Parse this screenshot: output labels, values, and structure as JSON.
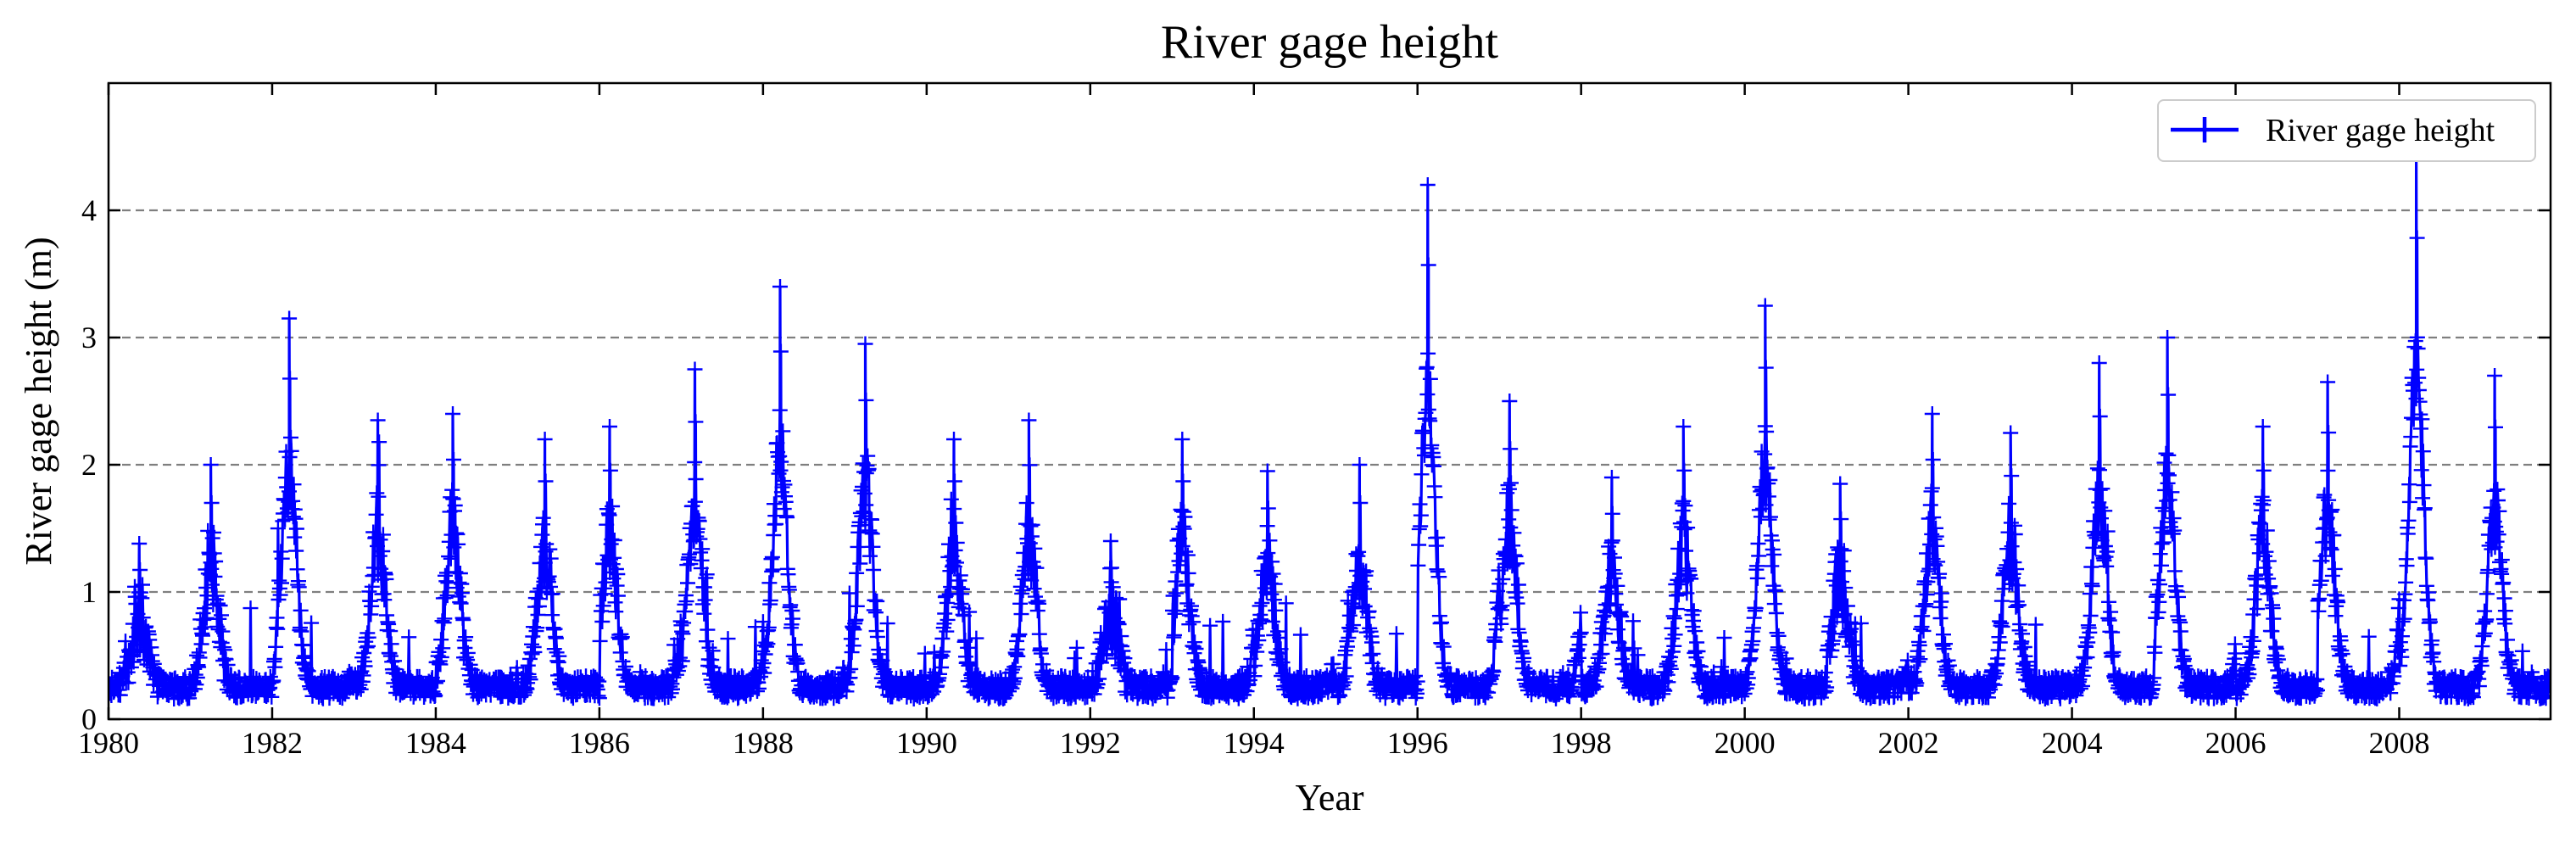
{
  "chart_data": {
    "type": "line",
    "title": "River gage height",
    "xlabel": "Year",
    "ylabel": "River gage height (m)",
    "xlim": [
      1980,
      2009.85
    ],
    "ylim": [
      0,
      5.0
    ],
    "x_ticks": [
      "1980",
      "1982",
      "1984",
      "1986",
      "1988",
      "1990",
      "1992",
      "1994",
      "1996",
      "1998",
      "2000",
      "2002",
      "2004",
      "2006",
      "2008"
    ],
    "y_ticks": [
      "0",
      "1",
      "2",
      "3",
      "4"
    ],
    "grid": "horizontal dashed",
    "legend": {
      "position": "top-right",
      "entries": [
        "River gage height"
      ]
    },
    "series": [
      {
        "name": "River gage height",
        "color": "#0000ff",
        "marker": "+",
        "annual_peaks": [
          {
            "year": 1980,
            "peak": 1.38,
            "month": 4.5
          },
          {
            "year": 1981,
            "peak": 2.0,
            "month": 3.0
          },
          {
            "year": 1982,
            "peak": 3.15,
            "month": 2.5
          },
          {
            "year": 1983,
            "peak": 2.35,
            "month": 3.5
          },
          {
            "year": 1984,
            "peak": 2.4,
            "month": 2.5
          },
          {
            "year": 1985,
            "peak": 2.2,
            "month": 4.0
          },
          {
            "year": 1986,
            "peak": 2.3,
            "month": 1.5
          },
          {
            "year": 1987,
            "peak": 2.75,
            "month": 2.0
          },
          {
            "year": 1988,
            "peak": 3.4,
            "month": 2.5
          },
          {
            "year": 1989,
            "peak": 2.95,
            "month": 3.0
          },
          {
            "year": 1990,
            "peak": 2.2,
            "month": 4.0
          },
          {
            "year": 1991,
            "peak": 2.35,
            "month": 3.0
          },
          {
            "year": 1992,
            "peak": 1.4,
            "month": 3.0
          },
          {
            "year": 1993,
            "peak": 2.2,
            "month": 1.5
          },
          {
            "year": 1994,
            "peak": 1.95,
            "month": 2.0
          },
          {
            "year": 1995,
            "peak": 2.0,
            "month": 3.5
          },
          {
            "year": 1996,
            "peak": 4.2,
            "month": 1.5
          },
          {
            "year": 1997,
            "peak": 2.5,
            "month": 1.5
          },
          {
            "year": 1998,
            "peak": 1.9,
            "month": 4.5
          },
          {
            "year": 1999,
            "peak": 2.3,
            "month": 3.0
          },
          {
            "year": 2000,
            "peak": 3.25,
            "month": 3.0
          },
          {
            "year": 2001,
            "peak": 1.85,
            "month": 2.0
          },
          {
            "year": 2002,
            "peak": 2.4,
            "month": 3.5
          },
          {
            "year": 2003,
            "peak": 2.25,
            "month": 3.0
          },
          {
            "year": 2004,
            "peak": 2.8,
            "month": 4.0
          },
          {
            "year": 2005,
            "peak": 3.0,
            "month": 2.0
          },
          {
            "year": 2006,
            "peak": 2.3,
            "month": 4.0
          },
          {
            "year": 2007,
            "peak": 2.65,
            "month": 1.5
          },
          {
            "year": 2008,
            "peak": 4.45,
            "month": 2.5
          },
          {
            "year": 2009,
            "peak": 2.7,
            "month": 2.0
          }
        ],
        "baseline_low": 0.25
      }
    ]
  }
}
